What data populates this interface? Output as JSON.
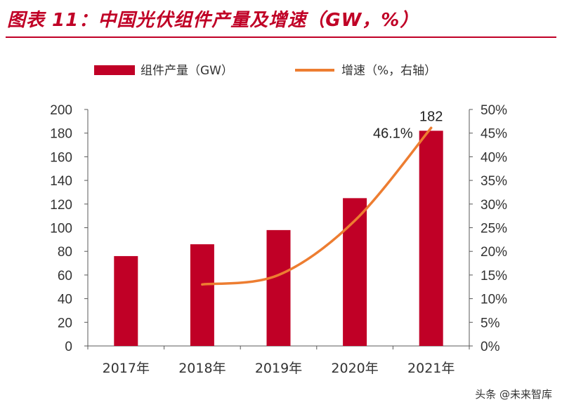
{
  "title": "图表 11：中国光伏组件产量及增速（GW，%）",
  "watermark": "头条 @未来智库",
  "chart_data": {
    "type": "bar",
    "categories": [
      "2017年",
      "2018年",
      "2019年",
      "2020年",
      "2021年"
    ],
    "series": [
      {
        "name": "组件产量（GW）",
        "kind": "bar",
        "axis": "left",
        "color": "#c00026",
        "values": [
          76,
          86,
          98,
          125,
          182
        ]
      },
      {
        "name": "增速（%，右轴）",
        "kind": "line",
        "axis": "right",
        "color": "#ed7d31",
        "values": [
          null,
          13.0,
          15.0,
          26.5,
          46.1
        ]
      }
    ],
    "left_axis": {
      "min": 0,
      "max": 200,
      "ticks": [
        "0",
        "20",
        "40",
        "60",
        "80",
        "100",
        "120",
        "140",
        "160",
        "180",
        "200"
      ]
    },
    "right_axis": {
      "min": 0,
      "max": 50,
      "ticks": [
        "0%",
        "5%",
        "10%",
        "15%",
        "20%",
        "25%",
        "30%",
        "35%",
        "40%",
        "45%",
        "50%"
      ]
    },
    "annotations": [
      {
        "label": "182",
        "series": 0,
        "index": 4
      },
      {
        "label": "46.1%",
        "series": 1,
        "index": 4
      }
    ],
    "legend": "top"
  }
}
